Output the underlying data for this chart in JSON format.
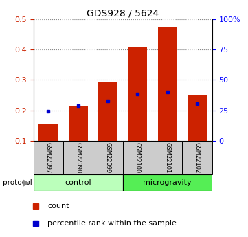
{
  "title": "GDS928 / 5624",
  "samples": [
    "GSM22097",
    "GSM22098",
    "GSM22099",
    "GSM22100",
    "GSM22101",
    "GSM22102"
  ],
  "red_values": [
    0.155,
    0.215,
    0.295,
    0.41,
    0.475,
    0.25
  ],
  "blue_values": [
    0.198,
    0.215,
    0.232,
    0.253,
    0.261,
    0.222
  ],
  "ylim_left": [
    0.1,
    0.5
  ],
  "ylim_right": [
    0,
    100
  ],
  "yticks_left": [
    0.1,
    0.2,
    0.3,
    0.4,
    0.5
  ],
  "yticks_right": [
    0,
    25,
    50,
    75,
    100
  ],
  "ytick_labels_right": [
    "0",
    "25",
    "50",
    "75",
    "100%"
  ],
  "group_colors": [
    "#bbffbb",
    "#55ee55"
  ],
  "bar_color": "#cc2200",
  "blue_color": "#0000cc",
  "bar_width": 0.65,
  "sample_bg": "#cccccc",
  "legend_items": [
    "count",
    "percentile rank within the sample"
  ]
}
